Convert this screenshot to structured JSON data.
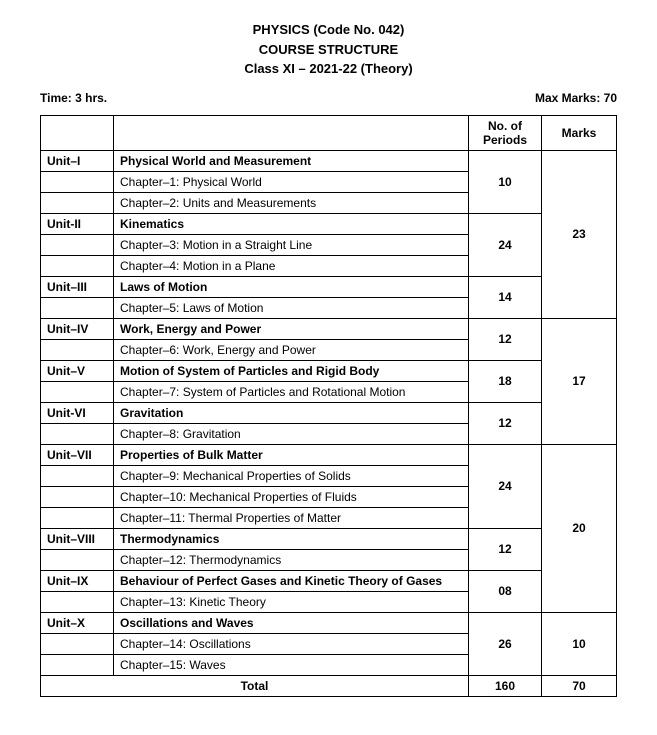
{
  "header": {
    "line1": "PHYSICS (Code No. 042)",
    "line2": "COURSE STRUCTURE",
    "line3": "Class XI – 2021-22 (Theory)"
  },
  "meta": {
    "time": "Time: 3 hrs.",
    "marks": "Max Marks: 70"
  },
  "columns": {
    "unit": "",
    "topic": "",
    "periods": "No. of Periods",
    "marks": "Marks"
  },
  "units": {
    "u1": {
      "id": "Unit–I",
      "title": "Physical World and Measurement",
      "ch1": "Chapter–1: Physical World",
      "ch2": "Chapter–2: Units and Measurements",
      "periods": "10"
    },
    "u2": {
      "id": "Unit-II",
      "title": "Kinematics",
      "ch1": "Chapter–3: Motion in a Straight Line",
      "ch2": "Chapter–4: Motion in a Plane",
      "periods": "24"
    },
    "u3": {
      "id": "Unit–III",
      "title": "Laws of Motion",
      "ch1": "Chapter–5: Laws of Motion",
      "periods": "14"
    },
    "u4": {
      "id": "Unit–IV",
      "title": "Work, Energy and Power",
      "ch1": "Chapter–6: Work, Energy and Power",
      "periods": "12"
    },
    "u5": {
      "id": "Unit–V",
      "title": "Motion of System of Particles and Rigid Body",
      "ch1": "Chapter–7: System of Particles and Rotational Motion",
      "periods": "18"
    },
    "u6": {
      "id": "Unit-VI",
      "title": "Gravitation",
      "ch1": "Chapter–8: Gravitation",
      "periods": "12"
    },
    "u7": {
      "id": "Unit–VII",
      "title": "Properties of Bulk Matter",
      "ch1": "Chapter–9: Mechanical Properties of Solids",
      "ch2": "Chapter–10: Mechanical Properties of Fluids",
      "ch3": "Chapter–11: Thermal Properties of Matter",
      "periods": "24"
    },
    "u8": {
      "id": "Unit–VIII",
      "title": "Thermodynamics",
      "ch1": "Chapter–12: Thermodynamics",
      "periods": "12"
    },
    "u9": {
      "id": "Unit–IX",
      "title": "Behaviour of Perfect Gases and Kinetic Theory of Gases",
      "ch1": "Chapter–13: Kinetic Theory",
      "periods": "08"
    },
    "u10": {
      "id": "Unit–X",
      "title": "Oscillations and Waves",
      "ch1": "Chapter–14: Oscillations",
      "ch2": "Chapter–15: Waves",
      "periods": "26"
    }
  },
  "marks_groups": {
    "g1": "23",
    "g2": "17",
    "g3": "20",
    "g4": "10"
  },
  "total": {
    "label": "Total",
    "periods": "160",
    "marks": "70"
  }
}
